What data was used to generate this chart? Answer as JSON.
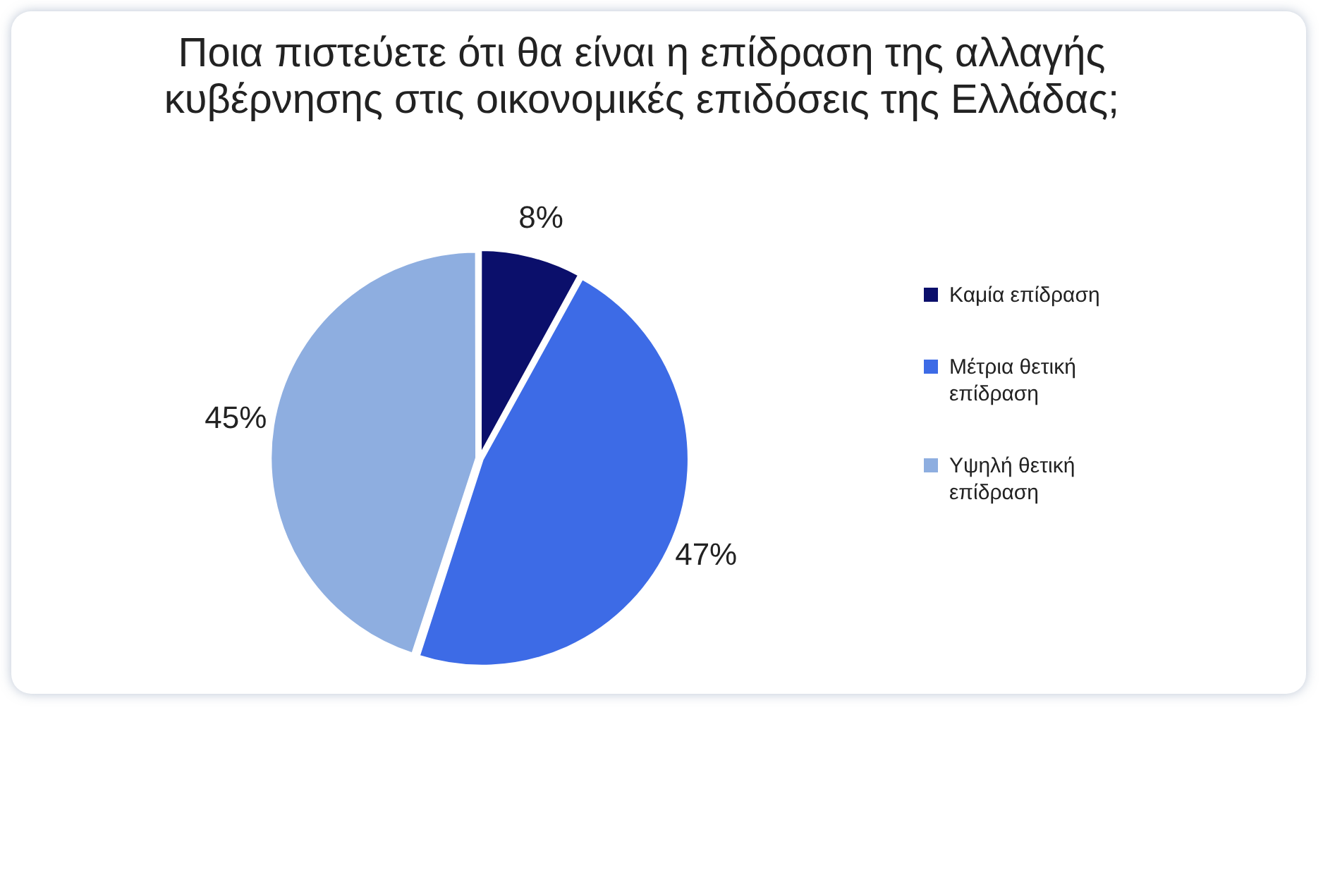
{
  "chart_data": {
    "type": "pie",
    "title": "Ποια πιστεύετε ότι θα είναι η επίδραση της αλλαγής κυβέρνησης στις οικονομικές επιδόσεις της Ελλάδας;",
    "categories": [
      "Καμία επίδραση",
      "Μέτρια θετική επίδραση",
      "Υψηλή θετική επίδραση"
    ],
    "values": [
      8,
      47,
      45
    ],
    "colors": [
      "#0b0f6b",
      "#3d6be6",
      "#8eaee0"
    ],
    "value_labels": [
      "8%",
      "47%",
      "45%"
    ],
    "legend": "right"
  }
}
